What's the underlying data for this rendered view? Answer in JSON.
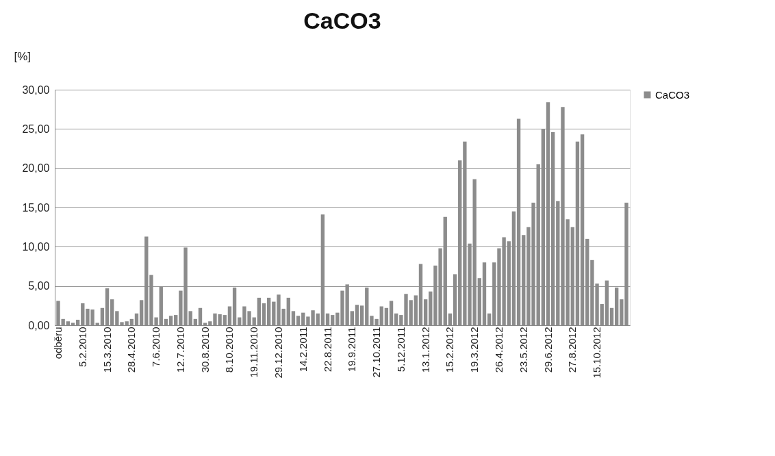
{
  "chart_data": {
    "type": "bar",
    "title": "CaCO3",
    "ylabel": "[%]",
    "categories": [
      "odběru",
      null,
      null,
      null,
      null,
      "5.2.2010",
      null,
      null,
      null,
      null,
      "15.3.2010",
      null,
      null,
      null,
      null,
      "28.4.2010",
      null,
      null,
      null,
      null,
      "7.6.2010",
      null,
      null,
      null,
      null,
      "12.7.2010",
      null,
      null,
      null,
      null,
      "30.8.2010",
      null,
      null,
      null,
      null,
      "8.10.2010",
      null,
      null,
      null,
      null,
      "19.11.2010",
      null,
      null,
      null,
      null,
      "29.12.2010",
      null,
      null,
      null,
      null,
      "14.2.2011",
      null,
      null,
      null,
      null,
      "22.8.2011",
      null,
      null,
      null,
      null,
      "19.9.2011",
      null,
      null,
      null,
      null,
      "27.10.2011",
      null,
      null,
      null,
      null,
      "5.12.2011",
      null,
      null,
      null,
      null,
      "13.1.2012",
      null,
      null,
      null,
      null,
      "15.2.2012",
      null,
      null,
      null,
      null,
      "19.3.2012",
      null,
      null,
      null,
      null,
      "26.4.2012",
      null,
      null,
      null,
      null,
      "23.5.2012",
      null,
      null,
      null,
      null,
      "29.6.2012",
      null,
      null,
      null,
      null,
      "27.8.2012",
      null,
      null,
      null,
      null,
      "15.10.2012",
      null,
      null,
      null,
      null,
      null,
      null
    ],
    "series": [
      {
        "name": "CaCO3",
        "color": "#8c8c8c",
        "values": [
          3.1,
          0.8,
          0.5,
          0.3,
          0.7,
          2.8,
          2.1,
          2.0,
          0.3,
          2.2,
          4.7,
          3.3,
          1.8,
          0.4,
          0.5,
          0.8,
          1.5,
          3.2,
          11.3,
          6.4,
          1.0,
          4.9,
          0.8,
          1.2,
          1.3,
          4.4,
          9.9,
          1.8,
          0.8,
          2.2,
          0.3,
          0.5,
          1.5,
          1.4,
          1.3,
          2.4,
          4.8,
          1.0,
          2.4,
          1.8,
          1.0,
          3.5,
          2.8,
          3.5,
          3.0,
          3.9,
          2.1,
          3.5,
          1.8,
          1.2,
          1.6,
          1.1,
          1.9,
          1.5,
          14.1,
          1.5,
          1.3,
          1.6,
          4.4,
          5.2,
          1.8,
          2.6,
          2.5,
          4.8,
          1.2,
          0.8,
          2.4,
          2.2,
          3.1,
          1.5,
          1.3,
          4.0,
          3.2,
          3.8,
          7.8,
          3.3,
          4.3,
          7.6,
          9.8,
          13.8,
          1.5,
          6.5,
          21.0,
          23.4,
          10.4,
          18.6,
          6.0,
          8.0,
          1.5,
          8.0,
          9.8,
          11.2,
          10.7,
          14.5,
          26.3,
          11.5,
          12.5,
          15.6,
          20.5,
          25.0,
          28.4,
          24.6,
          15.8,
          27.8,
          13.5,
          12.5,
          23.4,
          24.3,
          11.0,
          8.3,
          5.3,
          2.7,
          5.7,
          2.2,
          4.8,
          3.3,
          15.6
        ]
      }
    ],
    "ylim": [
      0,
      30
    ],
    "yticks": [
      {
        "value": 0,
        "label": "0,00"
      },
      {
        "value": 5,
        "label": "5,00"
      },
      {
        "value": 10,
        "label": "10,00"
      },
      {
        "value": 15,
        "label": "15,00"
      },
      {
        "value": 20,
        "label": "20,00"
      },
      {
        "value": 25,
        "label": "25,00"
      },
      {
        "value": 30,
        "label": "30,00"
      }
    ],
    "grid": "y",
    "legend": "right"
  }
}
